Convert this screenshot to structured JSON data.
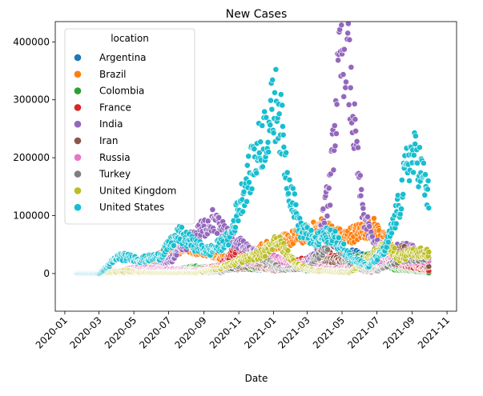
{
  "chart_data": {
    "type": "scatter",
    "title": "New Cases",
    "xlabel": "Date",
    "ylabel": "",
    "x_range": [
      "2020-01-01",
      "2021-11-01"
    ],
    "ylim": [
      -65000,
      435000
    ],
    "x_ticks": [
      "2020-01",
      "2020-03",
      "2020-05",
      "2020-07",
      "2020-09",
      "2020-11",
      "2021-01",
      "2021-03",
      "2021-05",
      "2021-07",
      "2021-09",
      "2021-11"
    ],
    "y_ticks": [
      0,
      100000,
      200000,
      300000,
      400000
    ],
    "y_tick_labels": [
      "0",
      "100000",
      "200000",
      "300000",
      "400000"
    ],
    "legend": {
      "title": "location",
      "position": "upper-left"
    },
    "series": [
      {
        "name": "Argentina",
        "color": "#1f77b4",
        "keyframes": [
          [
            "2020-03-05",
            0
          ],
          [
            "2020-05-01",
            300
          ],
          [
            "2020-07-01",
            3000
          ],
          [
            "2020-09-01",
            10000
          ],
          [
            "2020-10-20",
            15000
          ],
          [
            "2020-12-01",
            7000
          ],
          [
            "2021-01-15",
            12000
          ],
          [
            "2021-03-15",
            9000
          ],
          [
            "2021-04-15",
            25000
          ],
          [
            "2021-05-25",
            35000
          ],
          [
            "2021-06-20",
            20000
          ],
          [
            "2021-08-10",
            9000
          ],
          [
            "2021-09-30",
            1500
          ]
        ]
      },
      {
        "name": "Brazil",
        "color": "#ff7f0e",
        "keyframes": [
          [
            "2020-03-01",
            0
          ],
          [
            "2020-05-01",
            8000
          ],
          [
            "2020-06-15",
            30000
          ],
          [
            "2020-07-25",
            45000
          ],
          [
            "2020-09-01",
            40000
          ],
          [
            "2020-10-15",
            25000
          ],
          [
            "2020-11-15",
            30000
          ],
          [
            "2020-12-15",
            45000
          ],
          [
            "2021-01-15",
            55000
          ],
          [
            "2021-03-10",
            72000
          ],
          [
            "2021-03-25",
            80000
          ],
          [
            "2021-05-01",
            62000
          ],
          [
            "2021-05-25",
            70000
          ],
          [
            "2021-06-25",
            80000
          ],
          [
            "2021-07-30",
            40000
          ],
          [
            "2021-09-01",
            25000
          ],
          [
            "2021-09-30",
            14000
          ]
        ]
      },
      {
        "name": "Colombia",
        "color": "#2ca02c",
        "keyframes": [
          [
            "2020-03-10",
            0
          ],
          [
            "2020-06-01",
            1500
          ],
          [
            "2020-08-15",
            11000
          ],
          [
            "2020-10-01",
            7000
          ],
          [
            "2020-12-01",
            9000
          ],
          [
            "2021-01-15",
            17000
          ],
          [
            "2021-03-01",
            5000
          ],
          [
            "2021-04-20",
            17000
          ],
          [
            "2021-06-25",
            30000
          ],
          [
            "2021-08-01",
            8000
          ],
          [
            "2021-09-30",
            1500
          ]
        ]
      },
      {
        "name": "France",
        "color": "#d62728",
        "keyframes": [
          [
            "2020-03-01",
            0
          ],
          [
            "2020-03-28",
            5000
          ],
          [
            "2020-04-10",
            4500
          ],
          [
            "2020-05-10",
            1000
          ],
          [
            "2020-07-01",
            800
          ],
          [
            "2020-08-20",
            5000
          ],
          [
            "2020-10-01",
            14000
          ],
          [
            "2020-10-28",
            45000
          ],
          [
            "2020-11-10",
            30000
          ],
          [
            "2020-12-10",
            11000
          ],
          [
            "2021-01-15",
            20000
          ],
          [
            "2021-03-01",
            22000
          ],
          [
            "2021-04-01",
            35000
          ],
          [
            "2021-05-15",
            12000
          ],
          [
            "2021-06-20",
            2500
          ],
          [
            "2021-07-25",
            22000
          ],
          [
            "2021-08-20",
            15000
          ],
          [
            "2021-09-30",
            5000
          ]
        ]
      },
      {
        "name": "India",
        "color": "#9467bd",
        "keyframes": [
          [
            "2020-03-01",
            0
          ],
          [
            "2020-05-01",
            2500
          ],
          [
            "2020-06-01",
            8000
          ],
          [
            "2020-07-01",
            20000
          ],
          [
            "2020-08-01",
            52000
          ],
          [
            "2020-09-16",
            92000
          ],
          [
            "2020-10-15",
            65000
          ],
          [
            "2020-11-15",
            42000
          ],
          [
            "2020-12-15",
            25000
          ],
          [
            "2021-01-15",
            15000
          ],
          [
            "2021-02-15",
            12000
          ],
          [
            "2021-03-15",
            35000
          ],
          [
            "2021-04-10",
            150000
          ],
          [
            "2021-04-25",
            340000
          ],
          [
            "2021-05-07",
            410000
          ],
          [
            "2021-05-20",
            270000
          ],
          [
            "2021-06-05",
            110000
          ],
          [
            "2021-06-25",
            50000
          ],
          [
            "2021-07-25",
            40000
          ],
          [
            "2021-09-01",
            45000
          ],
          [
            "2021-09-20",
            30000
          ],
          [
            "2021-09-30",
            22000
          ]
        ]
      },
      {
        "name": "Iran",
        "color": "#8c564b",
        "keyframes": [
          [
            "2020-02-20",
            0
          ],
          [
            "2020-03-30",
            3000
          ],
          [
            "2020-05-01",
            1200
          ],
          [
            "2020-06-05",
            3000
          ],
          [
            "2020-08-01",
            2500
          ],
          [
            "2020-10-01",
            4000
          ],
          [
            "2020-11-20",
            14000
          ],
          [
            "2021-01-01",
            6000
          ],
          [
            "2021-02-15",
            8000
          ],
          [
            "2021-04-20",
            25000
          ],
          [
            "2021-06-01",
            10000
          ],
          [
            "2021-07-15",
            25000
          ],
          [
            "2021-08-15",
            40000
          ],
          [
            "2021-09-30",
            12000
          ]
        ]
      },
      {
        "name": "Russia",
        "color": "#e377c2",
        "keyframes": [
          [
            "2020-03-10",
            0
          ],
          [
            "2020-05-10",
            11000
          ],
          [
            "2020-07-01",
            7000
          ],
          [
            "2020-09-01",
            5000
          ],
          [
            "2020-10-15",
            15000
          ],
          [
            "2020-12-24",
            29000
          ],
          [
            "2021-02-01",
            18000
          ],
          [
            "2021-04-01",
            9000
          ],
          [
            "2021-05-15",
            8500
          ],
          [
            "2021-07-10",
            25000
          ],
          [
            "2021-08-15",
            21000
          ],
          [
            "2021-09-30",
            24000
          ]
        ]
      },
      {
        "name": "Turkey",
        "color": "#7f7f7f",
        "keyframes": [
          [
            "2020-03-10",
            0
          ],
          [
            "2020-04-12",
            4500
          ],
          [
            "2020-06-01",
            800
          ],
          [
            "2020-08-01",
            1200
          ],
          [
            "2020-10-01",
            2000
          ],
          [
            "2020-12-05",
            32000
          ],
          [
            "2021-01-15",
            7000
          ],
          [
            "2021-03-01",
            10000
          ],
          [
            "2021-04-15",
            60000
          ],
          [
            "2021-05-20",
            8000
          ],
          [
            "2021-07-01",
            5000
          ],
          [
            "2021-08-10",
            25000
          ],
          [
            "2021-09-30",
            28000
          ]
        ]
      },
      {
        "name": "United Kingdom",
        "color": "#bcbd22",
        "keyframes": [
          [
            "2020-03-01",
            0
          ],
          [
            "2020-04-15",
            5000
          ],
          [
            "2020-06-01",
            1000
          ],
          [
            "2020-08-15",
            1000
          ],
          [
            "2020-10-01",
            10000
          ],
          [
            "2020-11-10",
            25000
          ],
          [
            "2020-12-15",
            35000
          ],
          [
            "2021-01-06",
            60000
          ],
          [
            "2021-02-10",
            15000
          ],
          [
            "2021-03-15",
            5000
          ],
          [
            "2021-05-15",
            2500
          ],
          [
            "2021-07-17",
            50000
          ],
          [
            "2021-08-10",
            28000
          ],
          [
            "2021-09-05",
            38000
          ],
          [
            "2021-09-30",
            35000
          ]
        ]
      },
      {
        "name": "United States",
        "color": "#17becf",
        "keyframes": [
          [
            "2020-01-22",
            0
          ],
          [
            "2020-03-01",
            100
          ],
          [
            "2020-04-05",
            30000
          ],
          [
            "2020-05-15",
            24000
          ],
          [
            "2020-06-15",
            30000
          ],
          [
            "2020-07-20",
            68000
          ],
          [
            "2020-08-15",
            50000
          ],
          [
            "2020-09-10",
            38000
          ],
          [
            "2020-10-15",
            60000
          ],
          [
            "2020-11-15",
            160000
          ],
          [
            "2020-12-10",
            225000
          ],
          [
            "2021-01-08",
            300000
          ],
          [
            "2021-01-25",
            170000
          ],
          [
            "2021-02-15",
            80000
          ],
          [
            "2021-03-15",
            55000
          ],
          [
            "2021-04-10",
            70000
          ],
          [
            "2021-05-15",
            30000
          ],
          [
            "2021-06-15",
            12000
          ],
          [
            "2021-07-15",
            40000
          ],
          [
            "2021-08-10",
            120000
          ],
          [
            "2021-08-25",
            200000
          ],
          [
            "2021-09-10",
            200000
          ],
          [
            "2021-09-30",
            130000
          ]
        ]
      }
    ]
  }
}
